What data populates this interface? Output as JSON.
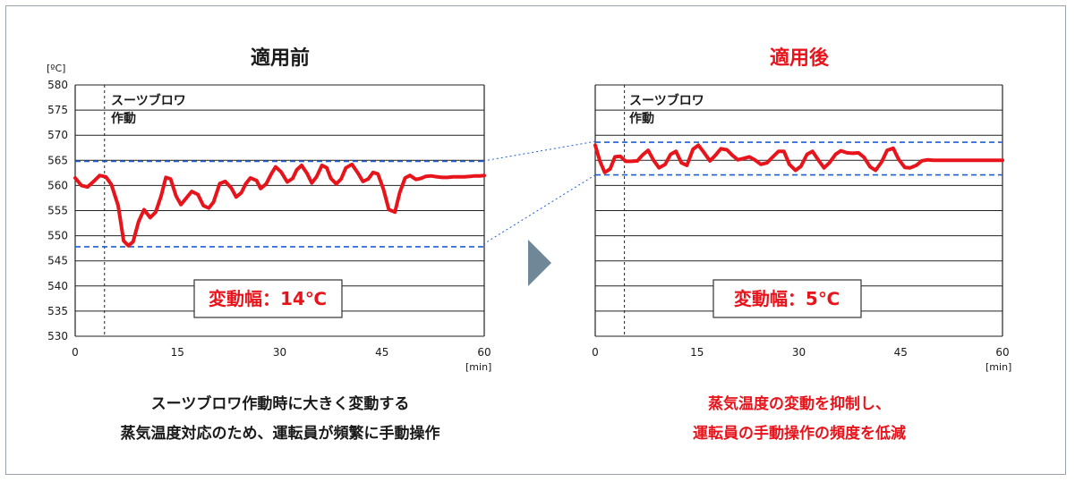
{
  "colors": {
    "line": "#e8141c",
    "red_text": "#e8141c",
    "blue": "#1f5fd6",
    "arrow": "#6f8796",
    "text": "#1a1a1a"
  },
  "left": {
    "title": "適用前",
    "unit": "[ºC]",
    "xunit": "[min]",
    "event_label_1": "スーツブロワ",
    "event_label_2": "作動",
    "box_label": "変動幅：14℃",
    "caption_1": "スーツブロワ作動時に大きく変動する",
    "caption_2": "蒸気温度対応のため、運転員が頻繁に手動操作"
  },
  "right": {
    "title": "適用後",
    "xunit": "[min]",
    "event_label_1": "スーツブロワ",
    "event_label_2": "作動",
    "box_label": "変動幅：5℃",
    "caption_1": "蒸気温度の変動を抑制し、",
    "caption_2": "運転員の手動操作の頻度を低減"
  },
  "chart_data": [
    {
      "type": "line",
      "title": "適用前",
      "xlabel": "[min]",
      "ylabel": "[ºC]",
      "xlim": [
        0,
        60
      ],
      "ylim": [
        530,
        580
      ],
      "xticks": [
        0,
        15,
        30,
        45,
        60
      ],
      "yticks": [
        530,
        535,
        540,
        545,
        550,
        555,
        560,
        565,
        570,
        575,
        580
      ],
      "grid": true,
      "event_x": 4.3,
      "band": [
        547.8,
        564.8
      ],
      "x": [
        0,
        0.9,
        1.8,
        2.7,
        3.6,
        4.5,
        5.3,
        6.3,
        7.1,
        7.8,
        8.5,
        9.3,
        10.1,
        11.0,
        11.8,
        12.6,
        13.3,
        14.0,
        14.8,
        15.5,
        16.3,
        17.1,
        18.0,
        18.8,
        19.6,
        20.3,
        21.2,
        22.0,
        22.9,
        23.6,
        24.4,
        25.0,
        25.7,
        26.6,
        27.2,
        28.0,
        28.8,
        29.4,
        30.2,
        31.1,
        31.9,
        32.5,
        33.2,
        34.0,
        34.7,
        35.4,
        36.2,
        36.9,
        37.5,
        38.3,
        39.0,
        39.7,
        40.6,
        41.5,
        42.2,
        43.0,
        43.7,
        44.4,
        45.2,
        46.0,
        46.9,
        47.6,
        48.4,
        49.1,
        50.0,
        50.7,
        51.4,
        52.2,
        53.1,
        53.9,
        54.6,
        55.4,
        56.2,
        57.1,
        57.9,
        58.6,
        59.4,
        60.0
      ],
      "values": [
        561.5,
        560.0,
        559.7,
        560.8,
        562.0,
        561.7,
        560.2,
        556.0,
        549.0,
        548.0,
        548.8,
        552.8,
        555.2,
        553.6,
        554.7,
        557.9,
        561.6,
        561.3,
        557.9,
        556.2,
        557.5,
        558.8,
        558.2,
        556.0,
        555.5,
        556.7,
        560.4,
        560.8,
        559.5,
        557.7,
        558.6,
        560.3,
        561.5,
        561.0,
        559.4,
        560.3,
        562.4,
        563.7,
        562.7,
        560.7,
        561.4,
        563.1,
        564.0,
        562.4,
        560.5,
        561.7,
        564.0,
        563.5,
        561.4,
        560.3,
        561.3,
        563.5,
        564.2,
        562.4,
        560.8,
        561.3,
        562.6,
        562.3,
        559.3,
        555.2,
        554.7,
        558.6,
        561.5,
        562.0,
        561.2,
        561.4,
        561.8,
        561.9,
        561.7,
        561.6,
        561.6,
        561.7,
        561.7,
        561.7,
        561.8,
        561.9,
        561.9,
        562.0
      ],
      "annotation": "変動幅：14℃"
    },
    {
      "type": "line",
      "title": "適用後",
      "xlabel": "[min]",
      "xlim": [
        0,
        60
      ],
      "ylim": [
        530,
        580
      ],
      "xticks": [
        0,
        15,
        30,
        45,
        60
      ],
      "grid": true,
      "event_x": 4.3,
      "band": [
        562.1,
        568.6
      ],
      "x": [
        0,
        0.7,
        1.4,
        2.2,
        2.9,
        3.7,
        4.5,
        5.3,
        6.2,
        7.0,
        7.8,
        8.6,
        9.4,
        10.3,
        11.1,
        11.9,
        12.7,
        13.5,
        14.4,
        15.2,
        16.0,
        16.9,
        17.7,
        18.5,
        19.4,
        20.2,
        21.0,
        21.9,
        22.7,
        23.6,
        24.4,
        25.3,
        26.1,
        27.0,
        27.8,
        28.6,
        29.5,
        30.3,
        31.2,
        32.0,
        32.9,
        33.7,
        34.5,
        35.4,
        36.2,
        37.1,
        37.9,
        38.8,
        39.6,
        40.5,
        41.3,
        42.2,
        43.0,
        43.9,
        44.7,
        45.6,
        46.4,
        47.3,
        48.1,
        49.0,
        49.8,
        50.7,
        51.5,
        52.4,
        53.2,
        54.1,
        54.9,
        55.8,
        56.6,
        57.5,
        58.3,
        59.2,
        60.0
      ],
      "values": [
        568.0,
        564.8,
        562.6,
        563.3,
        565.7,
        565.8,
        564.8,
        564.8,
        564.9,
        566.1,
        567.0,
        565.0,
        563.5,
        564.2,
        566.2,
        566.8,
        564.5,
        564.0,
        567.2,
        568.0,
        566.6,
        564.9,
        566.0,
        567.3,
        567.1,
        566.0,
        565.1,
        565.4,
        565.7,
        565.0,
        564.2,
        564.5,
        565.6,
        566.8,
        566.8,
        564.2,
        563.0,
        563.8,
        566.2,
        566.8,
        565.0,
        563.5,
        564.5,
        566.2,
        566.9,
        566.5,
        566.4,
        566.5,
        565.6,
        563.7,
        563.0,
        564.7,
        567.0,
        567.4,
        565.2,
        563.6,
        563.5,
        564.0,
        564.9,
        565.1,
        565.0,
        565.0,
        565.0,
        565.0,
        565.0,
        565.0,
        565.0,
        565.0,
        565.0,
        565.0,
        565.0,
        565.0,
        565.0
      ],
      "annotation": "変動幅：5℃"
    }
  ]
}
